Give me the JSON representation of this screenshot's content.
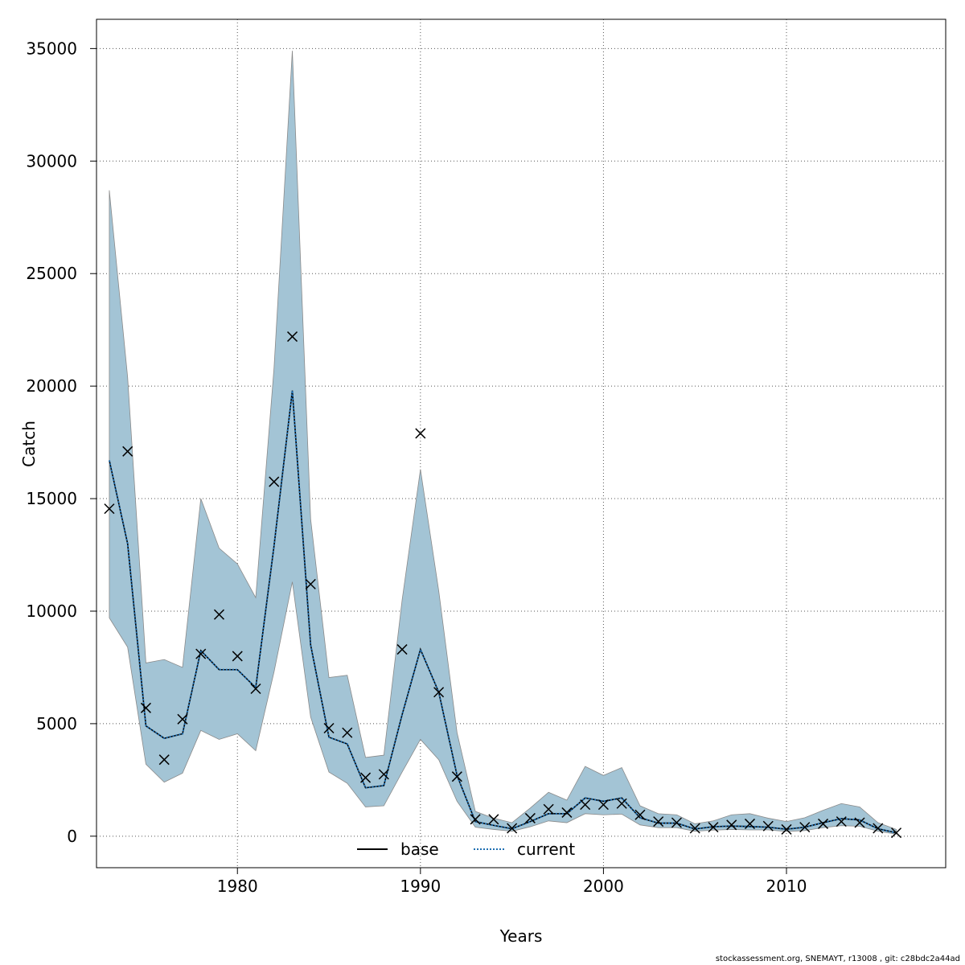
{
  "chart_data": {
    "type": "line",
    "xlabel": "Years",
    "ylabel": "Catch",
    "xlim": [
      1972.3,
      2018.7
    ],
    "ylim": [
      -1400,
      36300
    ],
    "xticks": [
      1980,
      1990,
      2000,
      2010
    ],
    "yticks": [
      0,
      5000,
      10000,
      15000,
      20000,
      25000,
      30000,
      35000
    ],
    "grid": true,
    "legend_position": "bottom-center",
    "colors": {
      "band": "#a3c4d5",
      "band_edge": "#8a8a8a",
      "current": "#1f6fb2",
      "base": "#000000",
      "observed": "#000000"
    },
    "legend": [
      {
        "label": "base",
        "style": "solid",
        "color": "#000000"
      },
      {
        "label": "current",
        "style": "dotted",
        "color": "#1f6fb2"
      }
    ],
    "x": [
      1973,
      1974,
      1975,
      1976,
      1977,
      1978,
      1979,
      1980,
      1981,
      1982,
      1983,
      1984,
      1985,
      1986,
      1987,
      1988,
      1989,
      1990,
      1991,
      1992,
      1993,
      1994,
      1995,
      1996,
      1997,
      1998,
      1999,
      2000,
      2001,
      2002,
      2003,
      2004,
      2005,
      2006,
      2007,
      2008,
      2009,
      2010,
      2011,
      2012,
      2013,
      2014,
      2015,
      2016
    ],
    "series": [
      {
        "name": "base",
        "style": "solid",
        "values": [
          16700,
          13000,
          4900,
          4350,
          4550,
          8250,
          7400,
          7400,
          6600,
          12900,
          19800,
          8500,
          4400,
          4100,
          2150,
          2250,
          5400,
          8300,
          6400,
          2700,
          650,
          480,
          330,
          650,
          1000,
          1000,
          1700,
          1550,
          1700,
          820,
          580,
          580,
          320,
          420,
          450,
          430,
          400,
          310,
          400,
          600,
          780,
          720,
          330,
          150
        ]
      },
      {
        "name": "current",
        "style": "dotted",
        "values": [
          16700,
          13000,
          4900,
          4350,
          4550,
          8250,
          7400,
          7400,
          6600,
          12900,
          19800,
          8500,
          4400,
          4100,
          2150,
          2250,
          5400,
          8300,
          6400,
          2700,
          650,
          480,
          330,
          650,
          1000,
          1000,
          1700,
          1550,
          1700,
          820,
          580,
          580,
          320,
          420,
          450,
          430,
          400,
          310,
          400,
          600,
          780,
          720,
          330,
          150
        ]
      }
    ],
    "ci_upper": [
      28700,
      20400,
      7700,
      7850,
      7500,
      15000,
      12800,
      12100,
      10600,
      20800,
      34900,
      14100,
      7050,
      7150,
      3500,
      3600,
      10500,
      16300,
      10900,
      4600,
      1100,
      800,
      600,
      1250,
      1950,
      1600,
      3100,
      2700,
      3050,
      1350,
      1000,
      950,
      550,
      680,
      950,
      1000,
      800,
      650,
      820,
      1150,
      1450,
      1300,
      600,
      300
    ],
    "ci_lower": [
      9700,
      8400,
      3200,
      2400,
      2800,
      4700,
      4300,
      4550,
      3800,
      7300,
      11300,
      5300,
      2850,
      2350,
      1300,
      1350,
      2850,
      4300,
      3400,
      1550,
      400,
      300,
      220,
      420,
      680,
      600,
      1000,
      950,
      980,
      500,
      380,
      380,
      220,
      270,
      300,
      280,
      280,
      210,
      250,
      380,
      470,
      440,
      220,
      90
    ],
    "observed": [
      14550,
      17100,
      5700,
      3400,
      5200,
      8100,
      9850,
      8000,
      6550,
      15750,
      22200,
      11200,
      4800,
      4600,
      2600,
      2750,
      8300,
      17900,
      6400,
      2650,
      750,
      750,
      350,
      800,
      1200,
      1050,
      1400,
      1400,
      1450,
      950,
      650,
      600,
      350,
      400,
      500,
      550,
      450,
      300,
      400,
      550,
      650,
      600,
      350,
      150
    ]
  },
  "footer_text": "stockassessment.org, SNEMAYT, r13008 , git: c28bdc2a44ad"
}
